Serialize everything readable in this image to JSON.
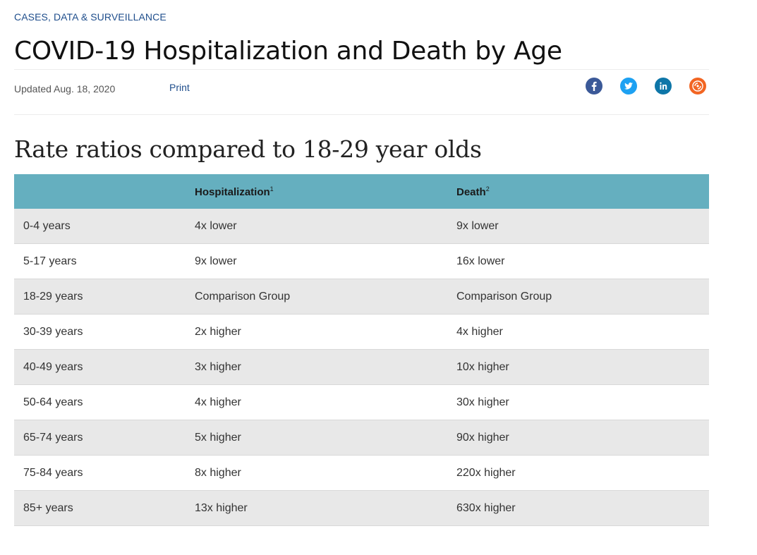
{
  "breadcrumb": "CASES, DATA & SURVEILLANCE",
  "title": "COVID-19 Hospitalization and Death by Age",
  "meta": {
    "updated": "Updated Aug. 18, 2020",
    "print_label": "Print"
  },
  "social": [
    {
      "icon": "facebook-icon",
      "color": "#3b5998"
    },
    {
      "icon": "twitter-icon",
      "color": "#1da1f2"
    },
    {
      "icon": "linkedin-icon",
      "color": "#0e76a8"
    },
    {
      "icon": "syndicate-icon",
      "color": "#f26522"
    }
  ],
  "section_title": "Rate ratios compared to 18-29 year olds",
  "table": {
    "headers": [
      "",
      "Hospitalization",
      "Death"
    ],
    "header_sups": [
      "",
      "1",
      "2"
    ],
    "rows": [
      [
        "0-4 years",
        "4x lower",
        "9x lower"
      ],
      [
        "5-17 years",
        "9x lower",
        "16x lower"
      ],
      [
        "18-29 years",
        "Comparison Group",
        "Comparison Group"
      ],
      [
        "30-39 years",
        "2x higher",
        "4x higher"
      ],
      [
        "40-49 years",
        "3x higher",
        "10x higher"
      ],
      [
        "50-64 years",
        "4x higher",
        "30x higher"
      ],
      [
        "65-74 years",
        "5x higher",
        "90x higher"
      ],
      [
        "75-84 years",
        "8x higher",
        "220x higher"
      ],
      [
        "85+ years",
        "13x higher",
        "630x higher"
      ]
    ]
  },
  "colors": {
    "header_bg": "#65afbf",
    "link": "#1f4e8c",
    "row_alt": "#e8e8e8"
  }
}
